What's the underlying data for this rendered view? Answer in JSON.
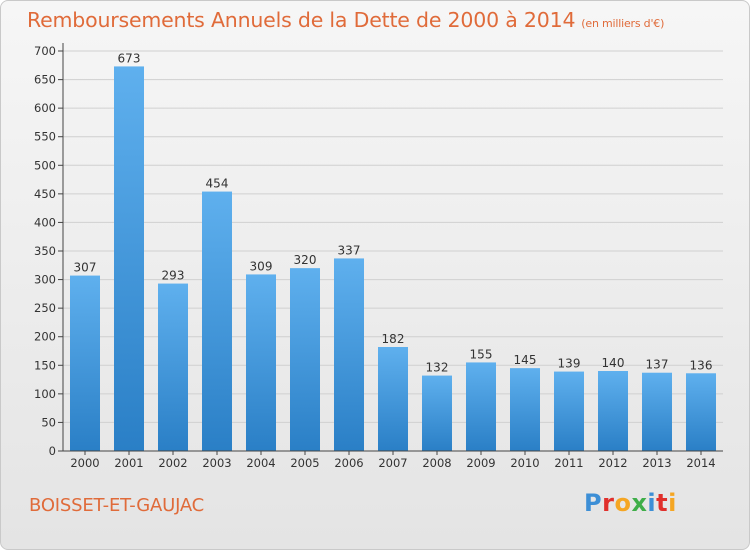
{
  "title": "Remboursements Annuels de la Dette de 2000 à 2014",
  "unit": "(en milliers d'€)",
  "commune": "BOISSET-ET-GAUJAC",
  "logo": {
    "text": "Proxiti",
    "colors": [
      "#3d8fd6",
      "#e0302c",
      "#f5a623",
      "#3fae49",
      "#3d8fd6",
      "#e0302c",
      "#f5a623"
    ]
  },
  "colors": {
    "title": "#e06b3a",
    "bar_top": "#5fb0ee",
    "bar_bottom": "#2a7fc6",
    "grid": "#d0d0d0",
    "axis": "#444444"
  },
  "chart_data": {
    "type": "bar",
    "categories": [
      "2000",
      "2001",
      "2002",
      "2003",
      "2004",
      "2005",
      "2006",
      "2007",
      "2008",
      "2009",
      "2010",
      "2011",
      "2012",
      "2013",
      "2014"
    ],
    "values": [
      307,
      673,
      293,
      454,
      309,
      320,
      337,
      182,
      132,
      155,
      145,
      139,
      140,
      137,
      136
    ],
    "ylim": [
      0,
      700
    ],
    "yticks": [
      0,
      50,
      100,
      150,
      200,
      250,
      300,
      350,
      400,
      450,
      500,
      550,
      600,
      650,
      700
    ],
    "grid": true,
    "data_labels": true
  }
}
